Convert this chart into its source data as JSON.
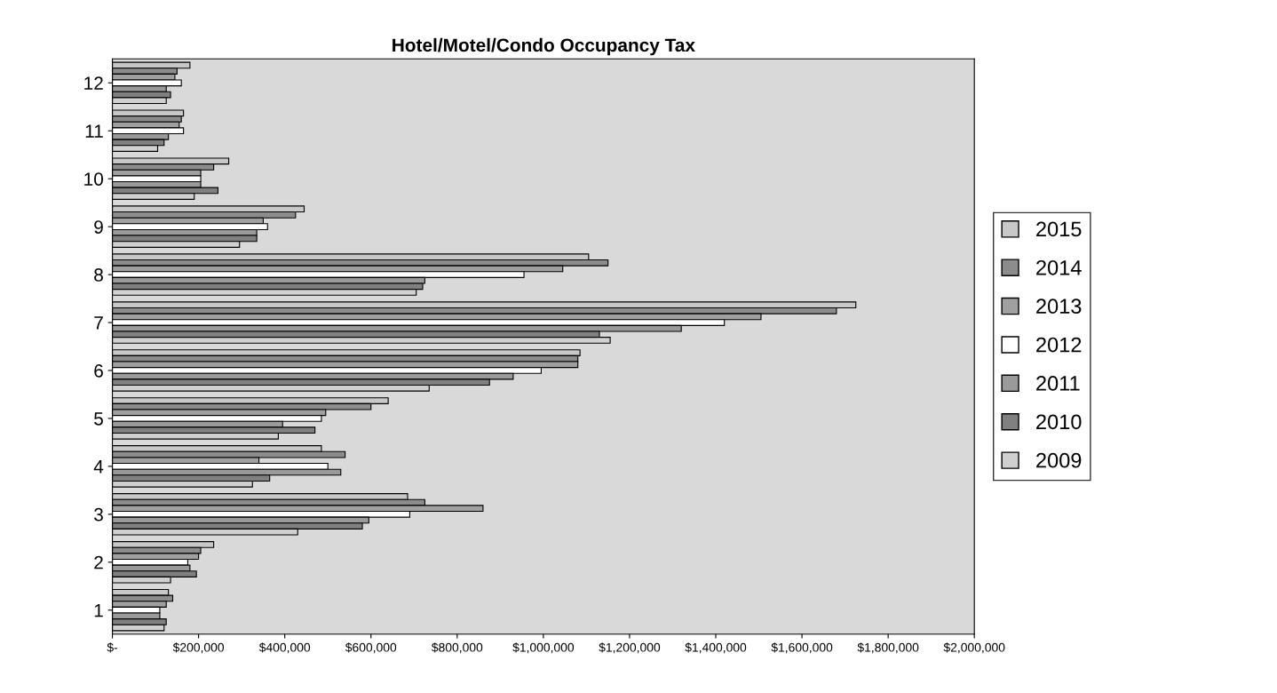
{
  "chart_data": {
    "type": "bar",
    "orientation": "horizontal",
    "title": "Hotel/Motel/Condo Occupancy Tax",
    "categories": [
      "12",
      "11",
      "10",
      "9",
      "8",
      "7",
      "6",
      "5",
      "4",
      "3",
      "2",
      "1"
    ],
    "series": [
      {
        "name": "2015",
        "color": "#c8c8c8",
        "values": [
          180000,
          165000,
          270000,
          445000,
          1105000,
          1725000,
          1085000,
          640000,
          485000,
          685000,
          235000,
          130000
        ]
      },
      {
        "name": "2014",
        "color": "#8c8c8c",
        "values": [
          150000,
          160000,
          235000,
          425000,
          1150000,
          1680000,
          1080000,
          600000,
          540000,
          725000,
          205000,
          140000
        ]
      },
      {
        "name": "2013",
        "color": "#a0a0a0",
        "values": [
          145000,
          155000,
          205000,
          350000,
          1045000,
          1505000,
          1080000,
          495000,
          340000,
          860000,
          200000,
          125000
        ]
      },
      {
        "name": "2012",
        "color": "#ffffff",
        "values": [
          160000,
          165000,
          205000,
          360000,
          955000,
          1420000,
          995000,
          485000,
          500000,
          690000,
          175000,
          110000
        ]
      },
      {
        "name": "2011",
        "color": "#9a9a9a",
        "values": [
          125000,
          130000,
          205000,
          335000,
          725000,
          1320000,
          930000,
          395000,
          530000,
          595000,
          180000,
          110000
        ]
      },
      {
        "name": "2010",
        "color": "#808080",
        "values": [
          135000,
          120000,
          245000,
          335000,
          720000,
          1130000,
          875000,
          470000,
          365000,
          580000,
          195000,
          125000
        ]
      },
      {
        "name": "2009",
        "color": "#d0d0d0",
        "values": [
          125000,
          105000,
          190000,
          295000,
          705000,
          1155000,
          735000,
          385000,
          325000,
          430000,
          135000,
          120000
        ]
      }
    ],
    "xlim": [
      0,
      2000000
    ],
    "xticks": [
      {
        "value": 0,
        "label": "$-"
      },
      {
        "value": 200000,
        "label": "$200,000"
      },
      {
        "value": 400000,
        "label": "$400,000"
      },
      {
        "value": 600000,
        "label": "$600,000"
      },
      {
        "value": 800000,
        "label": "$800,000"
      },
      {
        "value": 1000000,
        "label": "$1,000,000"
      },
      {
        "value": 1200000,
        "label": "$1,200,000"
      },
      {
        "value": 1400000,
        "label": "$1,400,000"
      },
      {
        "value": 1600000,
        "label": "$1,600,000"
      },
      {
        "value": 1800000,
        "label": "$1,800,000"
      },
      {
        "value": 2000000,
        "label": "$2,000,000"
      }
    ],
    "grid": false,
    "legend": "right"
  }
}
